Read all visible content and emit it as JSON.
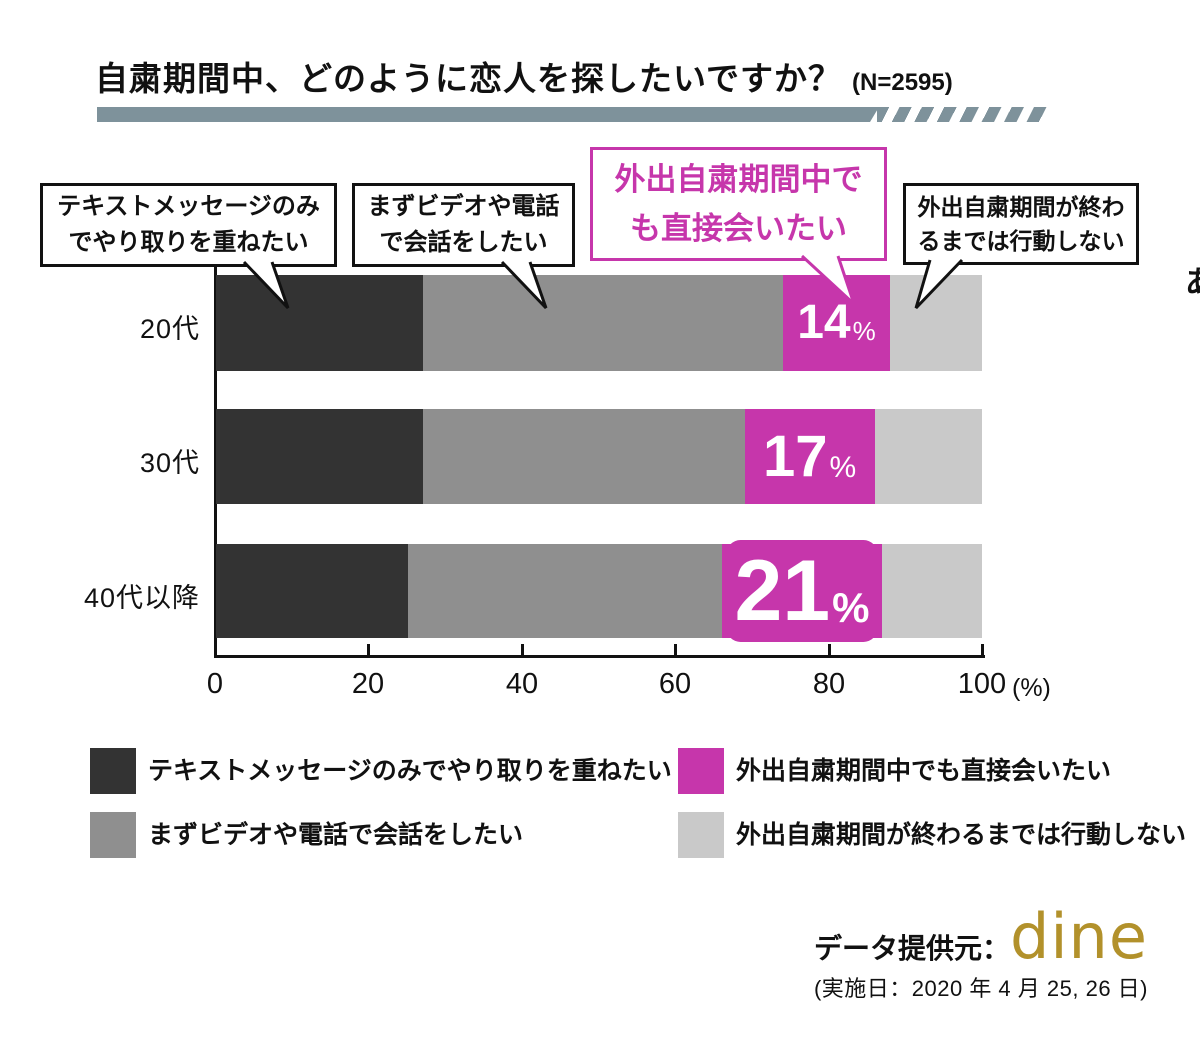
{
  "title": {
    "text": "自粛期間中、どのように恋人を探したいですか？",
    "sample_size": "(N=2595)"
  },
  "callouts": {
    "text_only": {
      "line1": "テキストメッセージのみ",
      "line2": "でやり取りを重ねたい"
    },
    "video_call": {
      "line1": "まずビデオや電話",
      "line2": "で会話をしたい"
    },
    "meet_directly": {
      "line1": "外出自粛期間中で",
      "line2": "も直接会いたい"
    },
    "wait_until_end": {
      "line1": "外出自粛期間が終わ",
      "line2": "るまでは行動しない"
    }
  },
  "chart_data": {
    "type": "bar",
    "orientation": "horizontal",
    "stacked": true,
    "categories": [
      "20代",
      "30代",
      "40代以降"
    ],
    "series": [
      {
        "name": "テキストメッセージのみでやり取りを重ねたい",
        "color": "#333333",
        "values": [
          27,
          27,
          25
        ]
      },
      {
        "name": "まずビデオや電話で会話をしたい",
        "color": "#8f8f8f",
        "values": [
          47,
          42,
          41
        ]
      },
      {
        "name": "外出自粛期間中でも直接会いたい",
        "color": "#c636ab",
        "values": [
          14,
          17,
          21
        ]
      },
      {
        "name": "外出自粛期間が終わるまでは行動しない",
        "color": "#c9c9c9",
        "values": [
          12,
          14,
          13
        ]
      }
    ],
    "labeled_series": "外出自粛期間中でも直接会いたい",
    "data_labels": [
      "14%",
      "17%",
      "21%"
    ],
    "percent_symbol": "%",
    "xlim": [
      0,
      100
    ],
    "x_ticks": [
      "0",
      "20",
      "40",
      "60",
      "80",
      "100"
    ],
    "x_unit": "(%)",
    "grid": false,
    "legend_position": "bottom"
  },
  "footer": {
    "source_label": "データ提供元：",
    "source_logo": "dine",
    "survey_date": "(実施日：2020 年 4 月 25, 26 日)"
  },
  "misc": {
    "clipped_char": "あ"
  },
  "colors": {
    "accent_magenta": "#c636ab",
    "dark_gray": "#333333",
    "mid_gray": "#8f8f8f",
    "light_gray": "#c9c9c9",
    "underline_bar": "#7e929b",
    "logo_gold": "#b2912b"
  }
}
